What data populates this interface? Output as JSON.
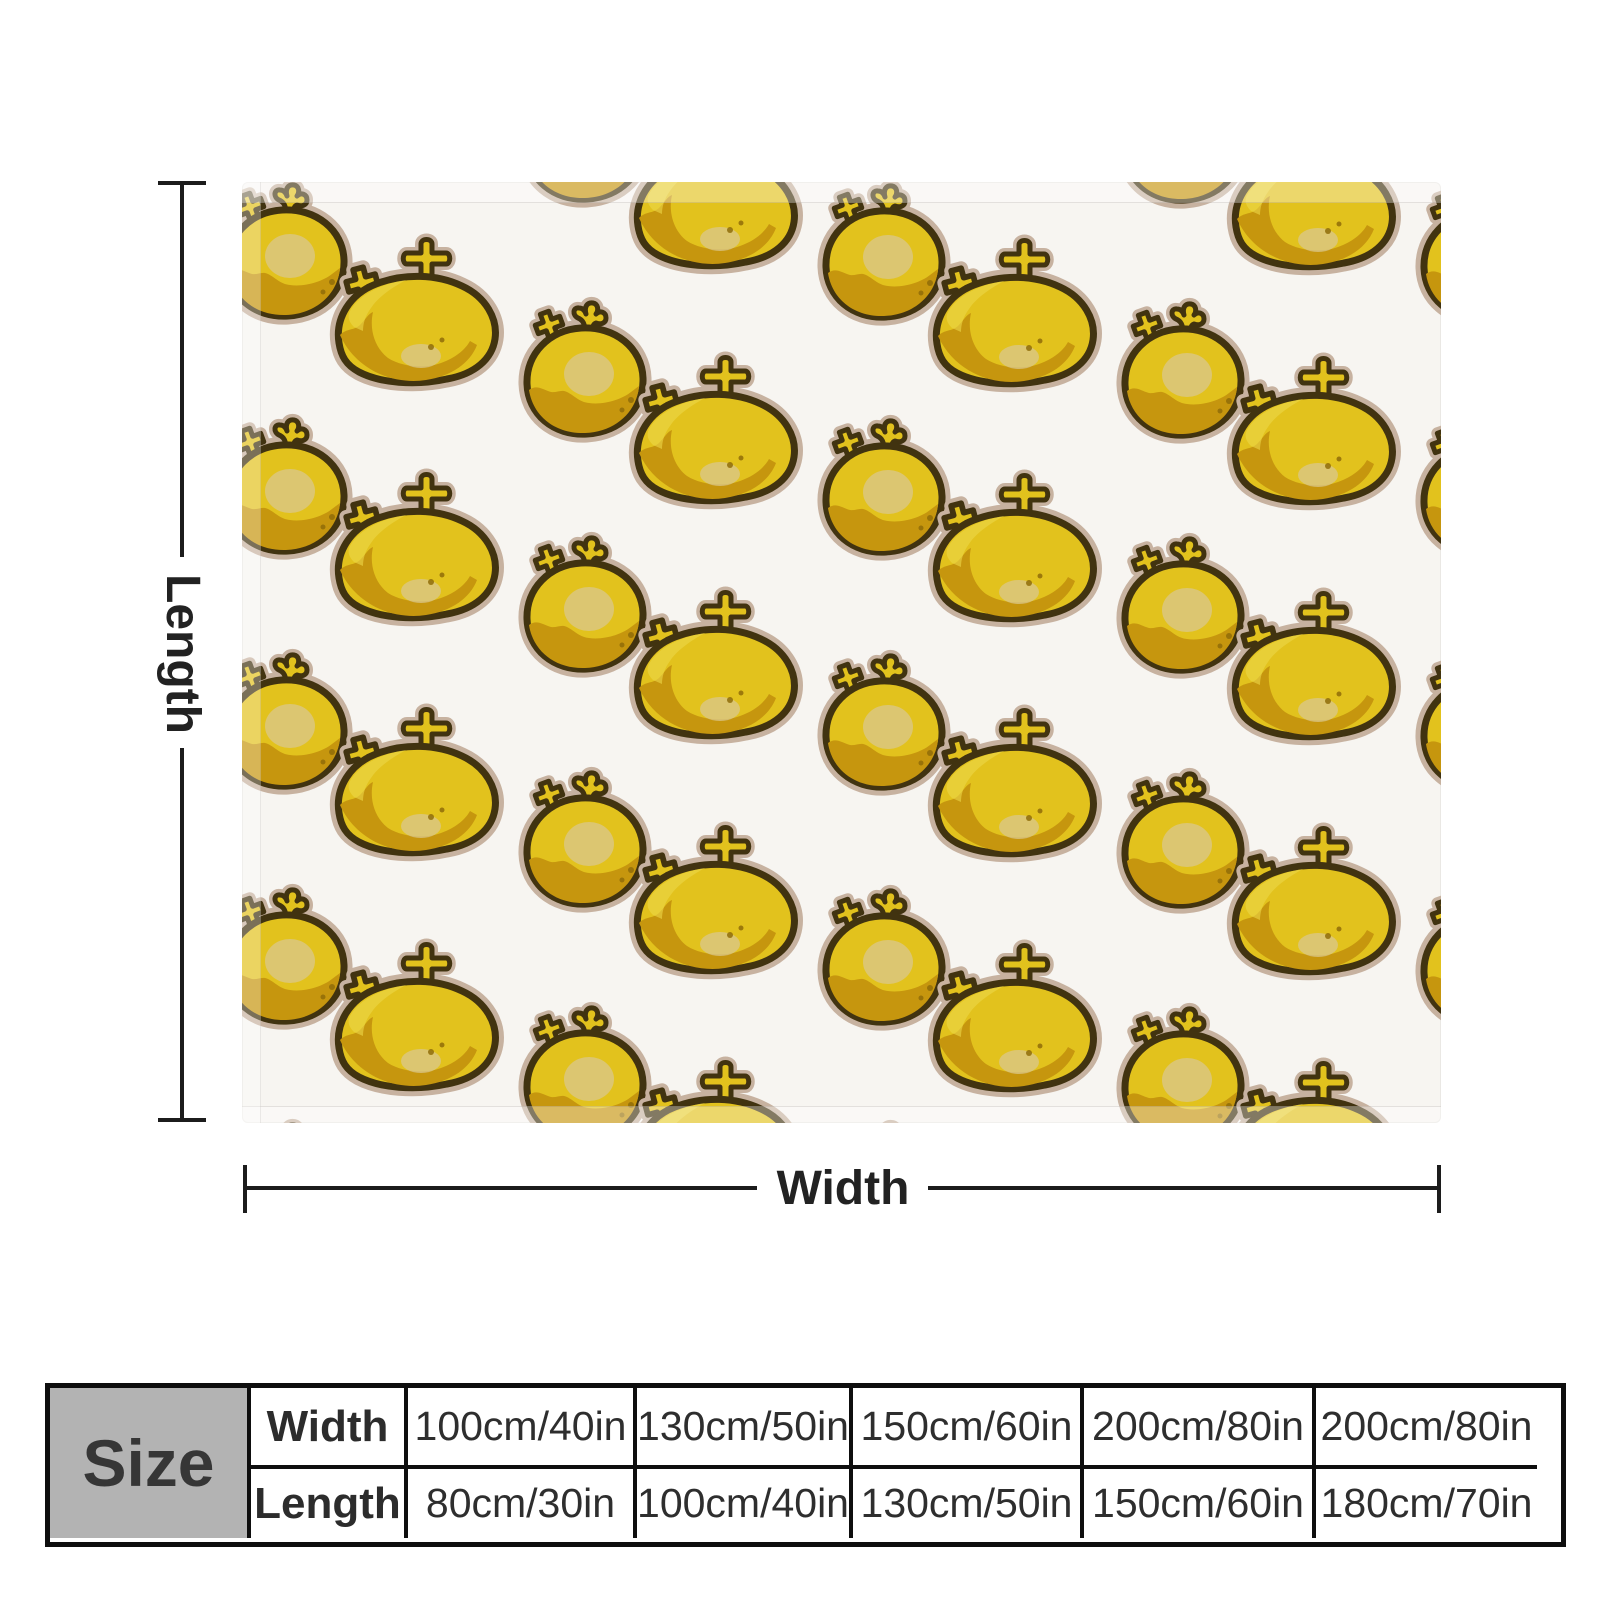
{
  "dimension_labels": {
    "vertical": "Length",
    "horizontal": "Width"
  },
  "size_table": {
    "corner_label": "Size",
    "rows": [
      {
        "label": "Width",
        "values": [
          "100cm/40in",
          "130cm/50in",
          "150cm/60in",
          "200cm/80in",
          "200cm/80in"
        ]
      },
      {
        "label": "Length",
        "values": [
          "80cm/30in",
          "100cm/40in",
          "130cm/50in",
          "150cm/60in",
          "180cm/70in"
        ]
      }
    ]
  },
  "pattern": {
    "icon": "cross-stem-fruit-icon",
    "variants": [
      "round-fruit-icon",
      "dome-fruit-icon"
    ]
  },
  "colors": {
    "fruit_yellow": "#e2c21d",
    "fruit_shade": "#c6960e",
    "fruit_outline": "#413310",
    "fruit_halo": "#c7b2a0",
    "fruit_pale_spot": "#d9c792",
    "fruit_highlight": "#ecd74a",
    "fruit_dot": "#8f6c08",
    "blanket_bg": "#f7f5f1",
    "table_corner_bg": "#b3b3b3",
    "dimension_line": "#1c1c1c",
    "table_border": "#0e0e0e",
    "text": "#2e2e2e"
  }
}
